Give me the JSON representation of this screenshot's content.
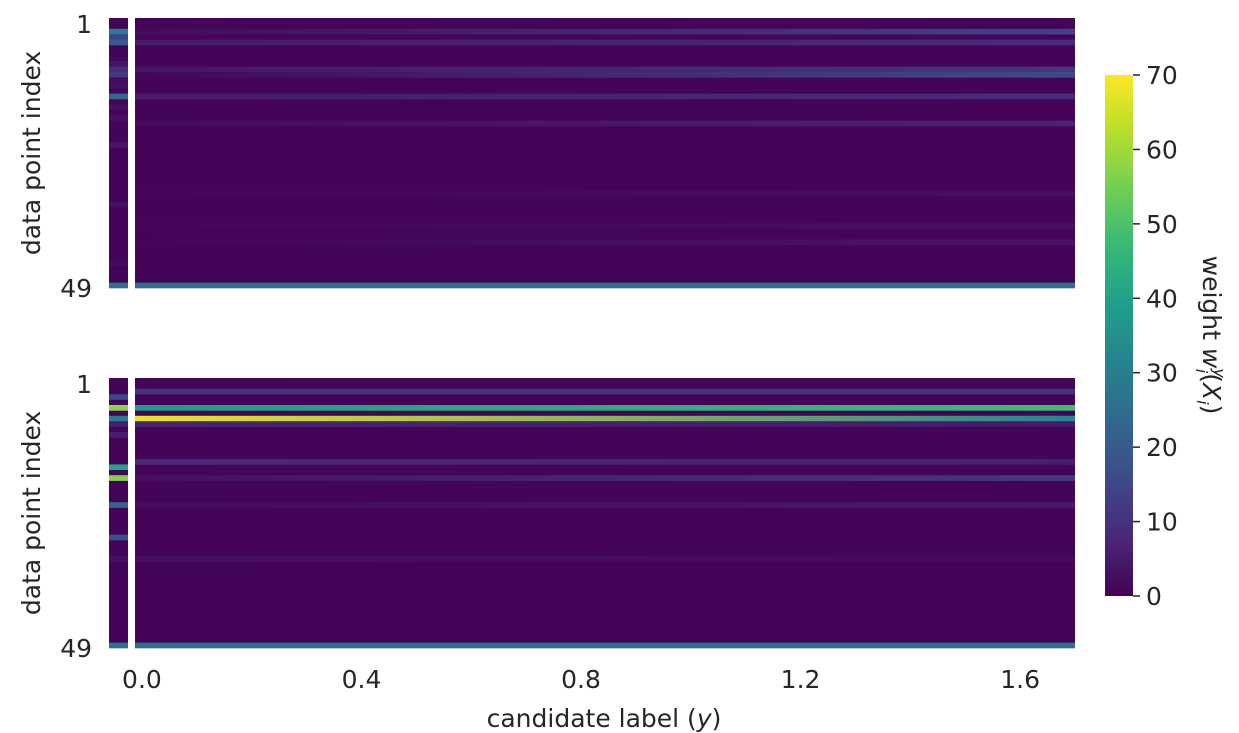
{
  "chart_data": {
    "type": "heatmap",
    "colormap": "viridis",
    "colorbar": {
      "label_text": "weight ",
      "label_symbol": "w",
      "label_sup": "y",
      "label_sub": "i",
      "label_tail_open": "(",
      "label_tail_var": "X",
      "label_tail_sub": "i",
      "label_tail_close": ")",
      "range": [
        0,
        70
      ],
      "ticks": [
        "0",
        "10",
        "20",
        "30",
        "40",
        "50",
        "60",
        "70"
      ]
    },
    "xlabel_text": "candidate label (",
    "xlabel_var": "y",
    "xlabel_close": ")",
    "xlim": [
      -0.06,
      1.7
    ],
    "x_ticks": [
      "0.0",
      "0.4",
      "0.8",
      "1.2",
      "1.6"
    ],
    "x_tick_values": [
      0.0,
      0.4,
      0.8,
      1.2,
      1.6
    ],
    "n_rows": 50,
    "panels": [
      {
        "ylabel": "data point index",
        "y_ticks": [
          "1",
          "49"
        ],
        "base_value": 0.6,
        "left_column": [
          {
            "row": 2,
            "value": 30
          },
          {
            "row": 3,
            "value": 14
          },
          {
            "row": 4,
            "value": 20
          },
          {
            "row": 8,
            "value": 4
          },
          {
            "row": 9,
            "value": 9
          },
          {
            "row": 10,
            "value": 12
          },
          {
            "row": 11,
            "value": 2
          },
          {
            "row": 12,
            "value": 3
          },
          {
            "row": 14,
            "value": 23
          },
          {
            "row": 16,
            "value": 3
          },
          {
            "row": 18,
            "value": 3
          },
          {
            "row": 23,
            "value": 4
          },
          {
            "row": 34,
            "value": 3
          },
          {
            "row": 45,
            "value": 2
          },
          {
            "row": 49,
            "value": 25
          }
        ],
        "rows": [
          {
            "row": 2,
            "start": 2,
            "end": 14
          },
          {
            "row": 4,
            "start": 5,
            "end": 9
          },
          {
            "row": 9,
            "start": 4,
            "end": 11
          },
          {
            "row": 10,
            "start": 1,
            "end": 16
          },
          {
            "row": 14,
            "start": 5,
            "end": 9
          },
          {
            "row": 19,
            "start": 2,
            "end": 7
          },
          {
            "row": 32,
            "start": 1,
            "end": 3
          },
          {
            "row": 38,
            "start": 1,
            "end": 3
          },
          {
            "row": 41,
            "start": 1,
            "end": 4
          },
          {
            "row": 49,
            "start": 25,
            "end": 25
          }
        ]
      },
      {
        "ylabel": "data point index",
        "y_ticks": [
          "1",
          "49"
        ],
        "base_value": 0.6,
        "left_column": [
          {
            "row": 3,
            "value": 14
          },
          {
            "row": 5,
            "value": 58
          },
          {
            "row": 7,
            "value": 30
          },
          {
            "row": 8,
            "value": 6
          },
          {
            "row": 10,
            "value": 6
          },
          {
            "row": 16,
            "value": 40
          },
          {
            "row": 18,
            "value": 57
          },
          {
            "row": 23,
            "value": 22
          },
          {
            "row": 29,
            "value": 17
          },
          {
            "row": 33,
            "value": 3
          },
          {
            "row": 49,
            "value": 25
          }
        ],
        "rows": [
          {
            "row": 2,
            "start": 10,
            "end": 10
          },
          {
            "row": 5,
            "start": 38,
            "end": 48
          },
          {
            "row": 7,
            "start": 68,
            "end": 32
          },
          {
            "row": 8,
            "start": 7,
            "end": 5
          },
          {
            "row": 15,
            "start": 8,
            "end": 6
          },
          {
            "row": 18,
            "start": 3,
            "end": 12
          },
          {
            "row": 23,
            "start": 2,
            "end": 5
          },
          {
            "row": 33,
            "start": 3,
            "end": 2
          },
          {
            "row": 49,
            "start": 25,
            "end": 25
          }
        ]
      }
    ]
  }
}
